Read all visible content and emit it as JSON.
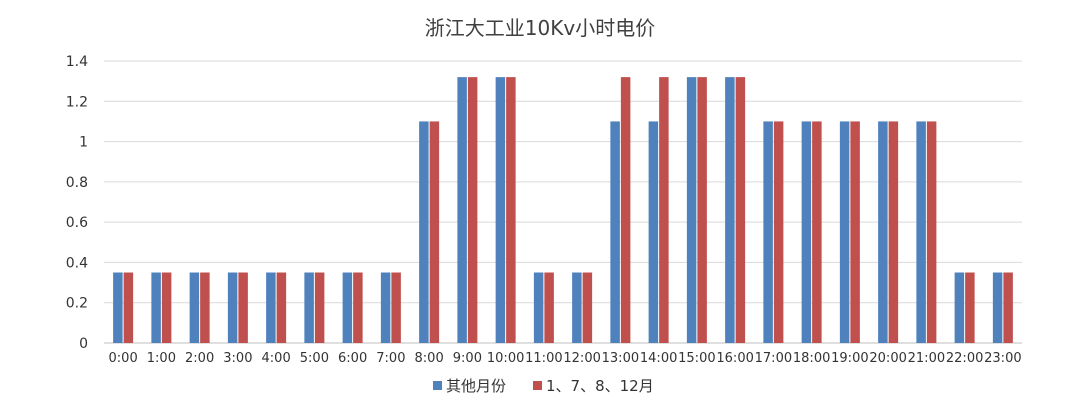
{
  "chart_data": {
    "type": "bar",
    "title": "浙江大工业10Kv小时电价",
    "xlabel": "",
    "ylabel": "",
    "ylim": [
      0,
      1.4
    ],
    "yticks": [
      0,
      0.2,
      0.4,
      0.6,
      0.8,
      1,
      1.2,
      1.4
    ],
    "ytick_labels": [
      "0",
      "0.2",
      "0.4",
      "0.6",
      "0.8",
      "1",
      "1.2",
      "1.4"
    ],
    "grid": true,
    "legend_position": "bottom",
    "categories": [
      "0:00",
      "1:00",
      "2:00",
      "3:00",
      "4:00",
      "5:00",
      "6:00",
      "7:00",
      "8:00",
      "9:00",
      "10:00",
      "11:00",
      "12:00",
      "13:00",
      "14:00",
      "15:00",
      "16:00",
      "17:00",
      "18:00",
      "19:00",
      "20:00",
      "21:00",
      "22:00",
      "23:00"
    ],
    "series": [
      {
        "name": "其他月份",
        "color": "#4f81bd",
        "values": [
          0.35,
          0.35,
          0.35,
          0.35,
          0.35,
          0.35,
          0.35,
          0.35,
          1.1,
          1.32,
          1.32,
          0.35,
          0.35,
          1.1,
          1.1,
          1.32,
          1.32,
          1.1,
          1.1,
          1.1,
          1.1,
          1.1,
          0.35,
          0.35
        ]
      },
      {
        "name": "1、7、8、12月",
        "color": "#c0504d",
        "values": [
          0.35,
          0.35,
          0.35,
          0.35,
          0.35,
          0.35,
          0.35,
          0.35,
          1.1,
          1.32,
          1.32,
          0.35,
          0.35,
          1.32,
          1.32,
          1.32,
          1.32,
          1.1,
          1.1,
          1.1,
          1.1,
          1.1,
          0.35,
          0.35
        ]
      }
    ]
  }
}
